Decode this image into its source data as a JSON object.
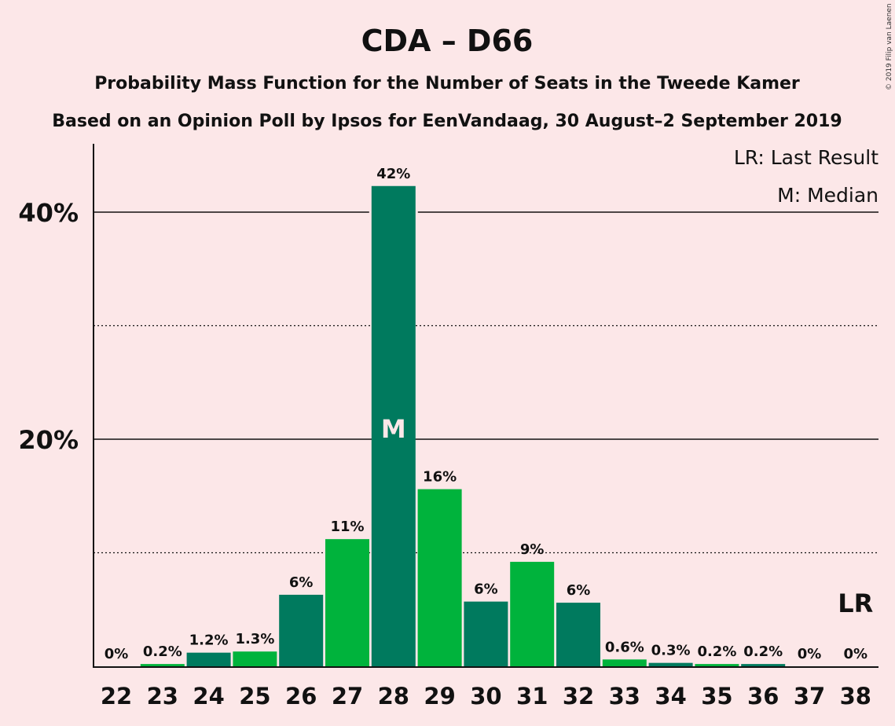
{
  "chart_data": {
    "type": "bar",
    "title": "CDA – D66",
    "subtitle_1": "Probability Mass Function for the Number of Seats in the Tweede Kamer",
    "subtitle_2": "Based on an Opinion Poll by Ipsos for EenVandaag, 30 August–2 September 2019",
    "copyright": "© 2019 Filip van Laenen",
    "legend": {
      "last_result": "LR: Last Result",
      "median": "M: Median"
    },
    "categories": [
      "22",
      "23",
      "24",
      "25",
      "26",
      "27",
      "28",
      "29",
      "30",
      "31",
      "32",
      "33",
      "34",
      "35",
      "36",
      "37",
      "38"
    ],
    "values": [
      0,
      0.2,
      1.2,
      1.3,
      6.3,
      11.2,
      42.3,
      15.6,
      5.7,
      9.2,
      5.6,
      0.6,
      0.3,
      0.2,
      0.2,
      0,
      0
    ],
    "labels": [
      "0%",
      "0.2%",
      "1.2%",
      "1.3%",
      "6%",
      "11%",
      "42%",
      "16%",
      "6%",
      "9%",
      "6%",
      "0.6%",
      "0.3%",
      "0.2%",
      "0.2%",
      "0%",
      "0%"
    ],
    "bar_colors": [
      "#007a5e",
      "#00b33c"
    ],
    "y_ticks": [
      {
        "value": 20,
        "label": "20%"
      },
      {
        "value": 40,
        "label": "40%"
      }
    ],
    "minor_gridlines": [
      10,
      30
    ],
    "ylim": [
      0,
      46
    ],
    "median_category": "28",
    "median_marker": "M",
    "last_result_category": "38",
    "last_result_marker": "LR"
  }
}
